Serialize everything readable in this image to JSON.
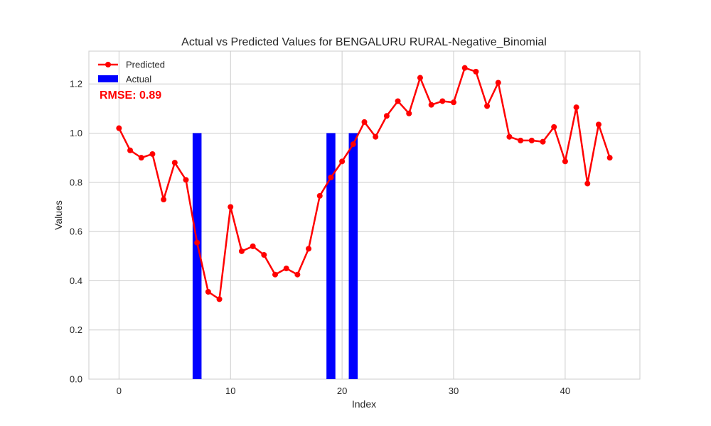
{
  "chart_data": {
    "type": "line",
    "title": "Actual vs Predicted Values for BENGALURU RURAL-Negative_Binomial",
    "xlabel": "Index",
    "ylabel": "Values",
    "xlim": [
      -2.7,
      46.7
    ],
    "ylim": [
      0,
      1.3333
    ],
    "xticks": [
      0,
      10,
      20,
      30,
      40
    ],
    "yticks": [
      0.0,
      0.2,
      0.4,
      0.6,
      0.8,
      1.0,
      1.2
    ],
    "ytick_labels": [
      "0.0",
      "0.2",
      "0.4",
      "0.6",
      "0.8",
      "1.0",
      "1.2"
    ],
    "grid": true,
    "legend_position": "top-left",
    "annotation": "RMSE: 0.89",
    "series": [
      {
        "name": "Predicted",
        "type": "line",
        "color": "#ff0000",
        "x": [
          0,
          1,
          2,
          3,
          4,
          5,
          6,
          7,
          8,
          9,
          10,
          11,
          12,
          13,
          14,
          15,
          16,
          17,
          18,
          19,
          20,
          21,
          22,
          23,
          24,
          25,
          26,
          27,
          28,
          29,
          30,
          31,
          32,
          33,
          34,
          35,
          36,
          37,
          38,
          39,
          40,
          41,
          42,
          43,
          44
        ],
        "values": [
          1.02,
          0.93,
          0.9,
          0.915,
          0.73,
          0.88,
          0.81,
          0.555,
          0.355,
          0.325,
          0.7,
          0.52,
          0.54,
          0.505,
          0.425,
          0.45,
          0.425,
          0.53,
          0.745,
          0.82,
          0.885,
          0.955,
          1.045,
          0.985,
          1.07,
          1.13,
          1.08,
          1.225,
          1.115,
          1.13,
          1.125,
          1.265,
          1.25,
          1.11,
          1.205,
          0.985,
          0.97,
          0.97,
          0.965,
          1.025,
          0.885,
          1.105,
          0.795,
          1.035,
          0.9
        ]
      },
      {
        "name": "Actual",
        "type": "bar",
        "color": "#0000ff",
        "x": [
          7,
          19,
          21
        ],
        "values": [
          1.0,
          1.0,
          1.0
        ]
      }
    ]
  }
}
